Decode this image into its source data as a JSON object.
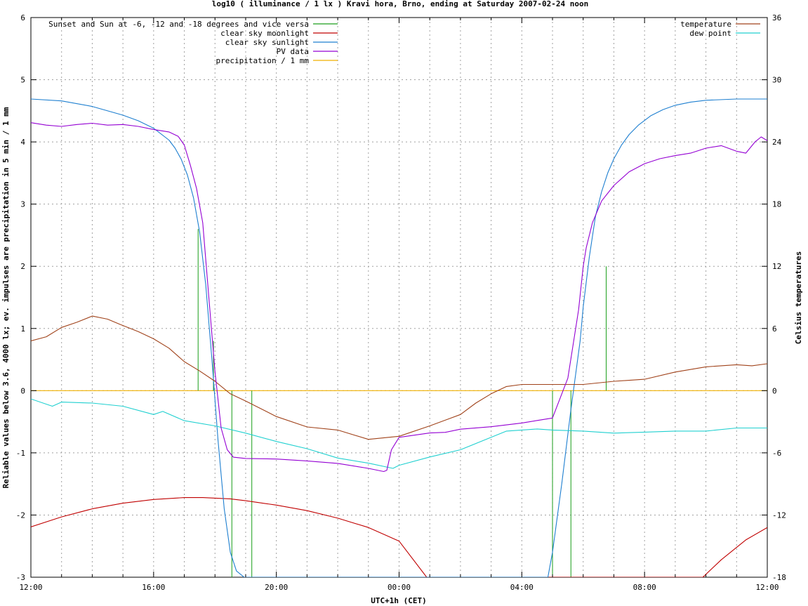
{
  "chart_data": {
    "type": "line",
    "title": "log10 ( illuminance / 1 lx ) Kravi hora, Brno, ending at Saturday 2007-02-24 noon",
    "xlabel": "UTC+1h (CET)",
    "ylabel": "Reliable values below 3.6, 4000 lx; ev. impulses are precipitation in 5 min / 1 mm",
    "y2label": "Celsius temperatures",
    "x_unit": "hours since 12:00",
    "xlim": [
      0,
      24
    ],
    "ylim": [
      -3,
      6
    ],
    "y2lim": [
      -18,
      36
    ],
    "x_ticks": [
      "12:00",
      "16:00",
      "20:00",
      "00:00",
      "04:00",
      "08:00",
      "12:00"
    ],
    "y_ticks": [
      "-3",
      "-2",
      "-1",
      "0",
      "1",
      "2",
      "3",
      "4",
      "5",
      "6"
    ],
    "y2_ticks": [
      "-18",
      "-12",
      "-6",
      "0",
      "6",
      "12",
      "18",
      "24",
      "30",
      "36"
    ],
    "grid": true,
    "legend_left": [
      "Sunset and Sun at -6, -12 and -18 degrees and vice versa",
      "clear sky moonlight",
      "clear sky sunlight",
      "PV data",
      "precipitation / 1 mm"
    ],
    "legend_right": [
      "temperature",
      "dew point"
    ],
    "colors": {
      "sun_markers": "#1a9e1a",
      "moonlight": "#c00000",
      "sunlight": "#1e7fd0",
      "pv": "#9400d3",
      "precipitation": "#f0b000",
      "temperature": "#a0421a",
      "dew_point": "#20d0d0",
      "grid": "#a0a0a0"
    },
    "sun_markers": {
      "x": [
        5.45,
        5.95,
        6.55,
        7.2,
        17.0,
        17.6,
        18.75
      ],
      "y": [
        2.6,
        0.8,
        0,
        0,
        0,
        0,
        2.0
      ]
    },
    "sunlight": {
      "y_axis": "left",
      "x": [
        0,
        1,
        2,
        3,
        3.5,
        4,
        4.5,
        4.7,
        4.9,
        5.1,
        5.3,
        5.5,
        5.7,
        5.9,
        6.1,
        6.3,
        6.5,
        6.7,
        6.95,
        7.1,
        16.85,
        17.0,
        17.3,
        17.6,
        17.9,
        18.0,
        18.2,
        18.4,
        18.6,
        18.8,
        19.0,
        19.25,
        19.5,
        19.8,
        20.2,
        20.6,
        21.0,
        21.5,
        22,
        23,
        24
      ],
      "y": [
        4.69,
        4.66,
        4.57,
        4.43,
        4.34,
        4.22,
        4.03,
        3.9,
        3.72,
        3.47,
        3.1,
        2.55,
        1.7,
        0.5,
        -0.8,
        -1.9,
        -2.6,
        -2.9,
        -3.0,
        -3.0,
        -3.0,
        -2.6,
        -1.5,
        -0.3,
        0.8,
        1.35,
        2.15,
        2.8,
        3.2,
        3.5,
        3.73,
        3.95,
        4.12,
        4.27,
        4.42,
        4.52,
        4.59,
        4.64,
        4.67,
        4.69,
        4.69
      ]
    },
    "moonlight": {
      "y_axis": "left",
      "x": [
        0,
        1,
        2,
        3,
        4,
        5,
        5.6,
        6.5,
        7,
        8,
        9,
        10,
        11,
        12,
        12.9,
        21.9,
        22.5,
        23.3,
        24
      ],
      "y": [
        -2.19,
        -2.03,
        -1.9,
        -1.81,
        -1.75,
        -1.72,
        -1.72,
        -1.74,
        -1.77,
        -1.84,
        -1.93,
        -2.05,
        -2.2,
        -2.42,
        -3.0,
        -3.0,
        -2.72,
        -2.4,
        -2.2
      ]
    },
    "pv_data": {
      "y_axis": "left",
      "x": [
        0,
        0.5,
        1,
        1.5,
        2,
        2.5,
        3,
        3.5,
        4,
        4.5,
        4.8,
        5,
        5.2,
        5.4,
        5.6,
        5.8,
        6,
        6.2,
        6.4,
        6.6,
        7,
        8,
        9,
        10,
        11,
        11.5,
        11.6,
        11.75,
        12,
        13,
        13.5,
        14,
        15,
        16,
        16.5,
        17,
        17.5,
        17.85,
        18.0,
        18.1,
        18.3,
        18.6,
        19,
        19.5,
        20,
        20.5,
        21,
        21.5,
        22,
        22.5,
        23,
        23.3,
        23.6,
        23.8,
        24
      ],
      "y": [
        4.31,
        4.27,
        4.25,
        4.28,
        4.3,
        4.27,
        4.28,
        4.25,
        4.2,
        4.16,
        4.09,
        3.95,
        3.62,
        3.25,
        2.7,
        1.5,
        0.3,
        -0.6,
        -0.95,
        -1.07,
        -1.09,
        -1.1,
        -1.13,
        -1.17,
        -1.25,
        -1.3,
        -1.28,
        -0.95,
        -0.75,
        -0.68,
        -0.67,
        -0.62,
        -0.58,
        -0.52,
        -0.48,
        -0.44,
        0.2,
        1.3,
        2.0,
        2.3,
        2.7,
        3.05,
        3.3,
        3.52,
        3.65,
        3.73,
        3.78,
        3.82,
        3.9,
        3.94,
        3.85,
        3.82,
        4.0,
        4.08,
        4.02
      ]
    },
    "precipitation": {
      "y_axis": "left",
      "x": [
        0,
        24
      ],
      "y": [
        0,
        0
      ]
    },
    "temperature": {
      "y_axis": "right",
      "x": [
        0,
        0.5,
        1,
        1.5,
        2,
        2.5,
        2.9,
        3.5,
        4,
        4.5,
        5,
        5.5,
        6,
        6.5,
        7,
        8,
        9,
        10,
        11,
        12,
        13,
        14,
        14.5,
        15,
        15.5,
        16,
        17,
        18,
        19,
        20,
        21,
        22,
        23,
        23.5,
        24
      ],
      "y": [
        4.8,
        5.2,
        6.1,
        6.6,
        7.2,
        6.9,
        6.4,
        5.7,
        5.0,
        4.1,
        2.8,
        1.9,
        0.9,
        -0.3,
        -1.0,
        -2.5,
        -3.5,
        -3.8,
        -4.7,
        -4.4,
        -3.4,
        -2.3,
        -1.2,
        -0.3,
        0.4,
        0.6,
        0.6,
        0.6,
        0.9,
        1.1,
        1.8,
        2.3,
        2.5,
        2.4,
        2.6
      ]
    },
    "dew_point": {
      "y_axis": "right",
      "x": [
        0,
        0.7,
        1,
        2,
        3,
        4,
        4.3,
        5,
        6,
        7,
        8,
        9,
        10,
        11,
        11.8,
        12,
        13,
        14,
        15,
        15.5,
        16,
        16.5,
        17,
        18,
        19,
        20,
        21,
        22,
        23,
        24
      ],
      "y": [
        -0.8,
        -1.5,
        -1.1,
        -1.2,
        -1.5,
        -2.3,
        -2.0,
        -2.9,
        -3.4,
        -4.1,
        -4.9,
        -5.6,
        -6.5,
        -7.0,
        -7.5,
        -7.2,
        -6.4,
        -5.7,
        -4.5,
        -3.9,
        -3.8,
        -3.7,
        -3.8,
        -3.9,
        -4.1,
        -4.0,
        -3.9,
        -3.9,
        -3.6,
        -3.6
      ]
    }
  }
}
